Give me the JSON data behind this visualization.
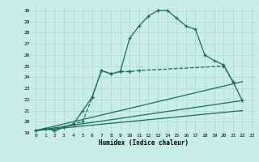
{
  "xlabel": "Humidex (Indice chaleur)",
  "bg_color": "#c8eee8",
  "grid_color": "#aad8cc",
  "line_color": "#1a6b5a",
  "xlim": [
    -0.5,
    23.5
  ],
  "ylim": [
    19,
    30.5
  ],
  "yticks": [
    19,
    20,
    21,
    22,
    23,
    24,
    25,
    26,
    27,
    28,
    29,
    30
  ],
  "xticks": [
    0,
    1,
    2,
    3,
    4,
    5,
    6,
    7,
    8,
    9,
    10,
    11,
    12,
    13,
    14,
    15,
    16,
    17,
    18,
    19,
    20,
    21,
    22,
    23
  ],
  "series_main": {
    "x": [
      0,
      1,
      2,
      3,
      4,
      5,
      6,
      7,
      8,
      9,
      10,
      11,
      12,
      13,
      14,
      15,
      16,
      17,
      18,
      19,
      20,
      21,
      22
    ],
    "y": [
      19.2,
      19.4,
      19.2,
      19.5,
      19.8,
      21.0,
      22.2,
      24.6,
      24.3,
      24.5,
      27.5,
      28.6,
      29.5,
      30.0,
      30.0,
      29.3,
      28.6,
      28.3,
      26.0,
      25.5,
      25.1,
      23.6,
      21.9
    ]
  },
  "series_dashed": {
    "x": [
      0,
      1,
      2,
      3,
      4,
      5,
      6,
      7,
      8,
      9,
      10
    ],
    "y": [
      19.2,
      19.4,
      19.2,
      19.5,
      19.8,
      20.0,
      22.2,
      24.6,
      24.3,
      24.5,
      24.5
    ]
  },
  "series_dashed2": {
    "x": [
      9,
      10,
      11,
      20,
      21
    ],
    "y": [
      24.5,
      24.5,
      24.6,
      25.0,
      23.6
    ]
  },
  "line1": {
    "x": [
      0,
      22
    ],
    "y": [
      19.2,
      21.9
    ]
  },
  "line2": {
    "x": [
      0,
      22
    ],
    "y": [
      19.2,
      23.6
    ]
  },
  "line3": {
    "x": [
      0,
      22
    ],
    "y": [
      19.2,
      21.0
    ]
  }
}
